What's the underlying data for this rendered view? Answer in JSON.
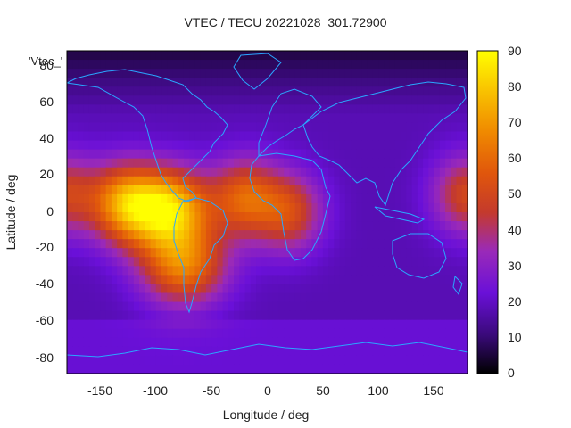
{
  "title": "VTEC / TECU 20221028_301.72900",
  "xlabel": "Longitude / deg",
  "ylabel": "Latitude / deg",
  "key_label": "'Vtec_'",
  "lon_ticks": [
    "-150",
    "-100",
    "-50",
    "0",
    "50",
    "100",
    "150"
  ],
  "lat_ticks": [
    "80",
    "60",
    "40",
    "20",
    "0",
    "-20",
    "-40",
    "-60",
    "-80"
  ],
  "colorbar_ticks": [
    "90",
    "80",
    "70",
    "60",
    "50",
    "40",
    "30",
    "20",
    "10",
    "0"
  ],
  "colors": {
    "coastline": "#2aa7ff",
    "palette_low": "#000000",
    "palette_high": "#ffff00"
  },
  "chart_data": {
    "type": "heatmap",
    "title": "VTEC / TECU 20221028_301.72900",
    "xlabel": "Longitude / deg",
    "ylabel": "Latitude / deg",
    "xlim": [
      -180,
      180
    ],
    "ylim": [
      -90,
      90
    ],
    "zlim": [
      0,
      90
    ],
    "colorbar_label": "",
    "palette": "gnuplot black-blue-purple-red-orange-yellow",
    "ionospheric_peaks": [
      {
        "lon": -90,
        "lat": 2,
        "vtec": 82
      },
      {
        "lon": -130,
        "lat": 5,
        "vtec": 60
      },
      {
        "lon": -75,
        "lat": -30,
        "vtec": 62
      },
      {
        "lon": -20,
        "lat": 8,
        "vtec": 55
      },
      {
        "lon": 20,
        "lat": 0,
        "vtec": 50
      },
      {
        "lon": 178,
        "lat": 10,
        "vtec": 48
      }
    ]
  }
}
